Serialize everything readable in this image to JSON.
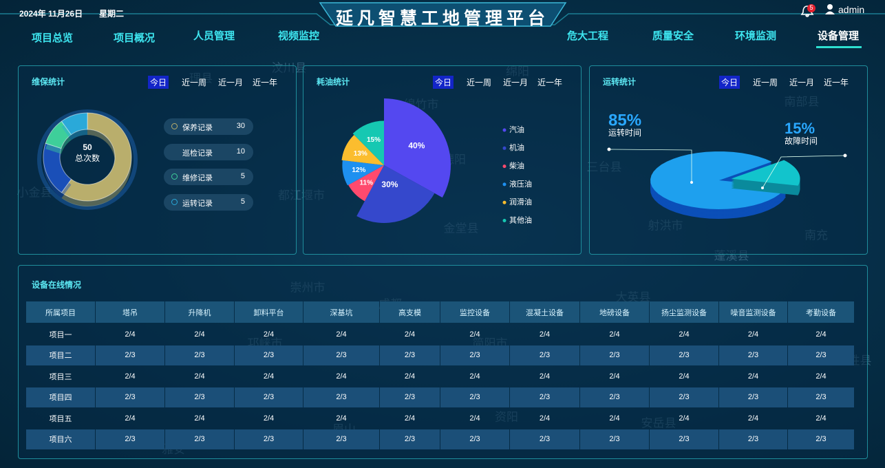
{
  "header": {
    "date": "2024年 11月26日",
    "weekday": "星期二",
    "title": "延凡智慧工地管理平台",
    "notifications": 5,
    "user": "admin"
  },
  "nav": {
    "left": [
      "项目总览",
      "项目概况",
      "人员管理",
      "视频监控"
    ],
    "right": [
      "危大工程",
      "质量安全",
      "环境监测",
      "设备管理"
    ],
    "active_right": 3
  },
  "map_labels": [
    "汶川县",
    "理县",
    "绵阳",
    "绵竹市",
    "德阳",
    "都江堰市",
    "小金县",
    "三台县",
    "南部县",
    "射洪市",
    "南充",
    "蓬溪县",
    "金堂县",
    "崇州市",
    "成都",
    "大英县",
    "邛崃市",
    "简阳市",
    "资阳",
    "安岳县",
    "眉山",
    "雅安",
    "武胜县",
    "宝兴县",
    "天全县",
    "丹棱县"
  ],
  "maintenance": {
    "title": "维保统计",
    "tabs": [
      "今日",
      "近一周",
      "近一月",
      "近一年"
    ],
    "active_tab": 0,
    "total": 50,
    "total_label": "总次数",
    "chart_data": {
      "type": "donut",
      "categories": [
        "保养记录",
        "巡检记录",
        "维修记录",
        "运转记录"
      ],
      "values": [
        30,
        10,
        5,
        5
      ],
      "colors": [
        "#b9ae6c",
        "#1a4fb8",
        "#3ecf9a",
        "#2aa9d9"
      ]
    }
  },
  "fuel": {
    "title": "耗油统计",
    "tabs": [
      "今日",
      "近一周",
      "近一月",
      "近一年"
    ],
    "active_tab": 0,
    "chart_data": {
      "type": "rose",
      "categories": [
        "汽油",
        "机油",
        "柴油",
        "液压油",
        "润滑油",
        "其他油"
      ],
      "values": [
        40,
        30,
        11,
        12,
        13,
        15
      ],
      "value_labels": [
        "40%",
        "30%",
        "11%",
        "12%",
        "13%",
        "15%"
      ],
      "colors": [
        "#5448f0",
        "#3548cc",
        "#ff4a6e",
        "#1e90f0",
        "#fbbd2e",
        "#16c8b2"
      ]
    }
  },
  "operation": {
    "title": "运转统计",
    "tabs": [
      "今日",
      "近一周",
      "近一月",
      "近一年"
    ],
    "active_tab": 0,
    "chart_data": {
      "type": "pie3d",
      "categories": [
        "运转时间",
        "故障时间"
      ],
      "values": [
        85,
        15
      ],
      "value_labels": [
        "85%",
        "15%"
      ],
      "colors": [
        "#1ea0ee",
        "#12c4cc"
      ]
    }
  },
  "table": {
    "title": "设备在线情况",
    "headers": [
      "所属项目",
      "塔吊",
      "升降机",
      "卸料平台",
      "深基坑",
      "高支模",
      "监控设备",
      "混凝土设备",
      "地磅设备",
      "扬尘监测设备",
      "噪音监测设备",
      "考勤设备"
    ],
    "rows": [
      [
        "项目一",
        "2/4",
        "2/4",
        "2/4",
        "2/4",
        "2/4",
        "2/4",
        "2/4",
        "2/4",
        "2/4",
        "2/4",
        "2/4"
      ],
      [
        "项目二",
        "2/3",
        "2/3",
        "2/3",
        "2/3",
        "2/3",
        "2/3",
        "2/3",
        "2/3",
        "2/3",
        "2/3",
        "2/3"
      ],
      [
        "项目三",
        "2/4",
        "2/4",
        "2/4",
        "2/4",
        "2/4",
        "2/4",
        "2/4",
        "2/4",
        "2/4",
        "2/4",
        "2/4"
      ],
      [
        "项目四",
        "2/3",
        "2/3",
        "2/3",
        "2/3",
        "2/3",
        "2/3",
        "2/3",
        "2/3",
        "2/3",
        "2/3",
        "2/3"
      ],
      [
        "项目五",
        "2/4",
        "2/4",
        "2/4",
        "2/4",
        "2/4",
        "2/4",
        "2/4",
        "2/4",
        "2/4",
        "2/4",
        "2/4"
      ],
      [
        "项目六",
        "2/3",
        "2/3",
        "2/3",
        "2/3",
        "2/3",
        "2/3",
        "2/3",
        "2/3",
        "2/3",
        "2/3",
        "2/3"
      ]
    ]
  }
}
